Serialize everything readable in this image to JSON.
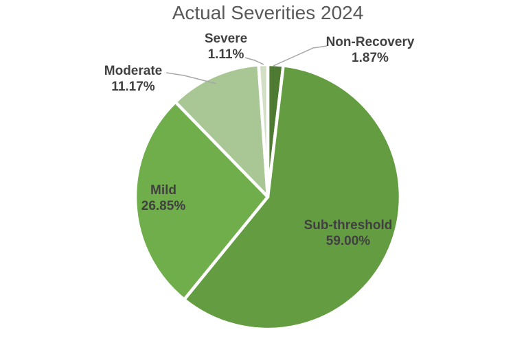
{
  "chart_data": {
    "type": "pie",
    "title": "Actual Severities 2024",
    "direction": "clockwise_from_top",
    "start_angle_deg": 0,
    "legend": "none",
    "labels_show": "category_and_percent",
    "background": "#ffffff",
    "title_color": "#595959",
    "label_color": "#404040",
    "leader_line_color": "#a6a6a6",
    "slice_border_color": "#ffffff",
    "slices": [
      {
        "label": "Non-Recovery",
        "value": 1.87,
        "display": "1.87%",
        "color": "#4e7b31",
        "label_style": "outside-leader"
      },
      {
        "label": "Sub-threshold",
        "value": 59.0,
        "display": "59.00%",
        "color": "#649d41",
        "label_style": "inside"
      },
      {
        "label": "Mild",
        "value": 26.85,
        "display": "26.85%",
        "color": "#70ad4b",
        "label_style": "inside"
      },
      {
        "label": "Moderate",
        "value": 11.17,
        "display": "11.17%",
        "color": "#a8c795",
        "label_style": "outside-leader"
      },
      {
        "label": "Severe",
        "value": 1.11,
        "display": "1.11%",
        "color": "#d2dfc4",
        "label_style": "outside-leader"
      }
    ]
  }
}
